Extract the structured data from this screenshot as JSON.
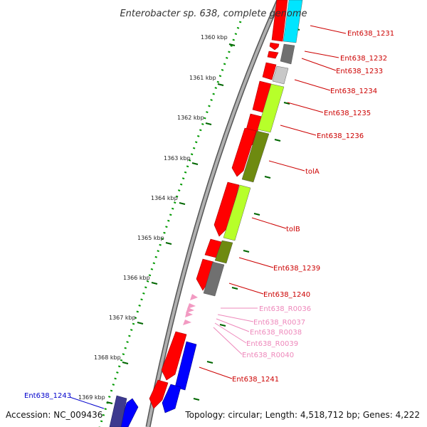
{
  "map": {
    "title": "Enterobacter sp. 638, complete genome",
    "accession": "Accession: NC_009436",
    "summary": "Topology: circular; Length: 4,518,712 bp; Genes: 4,222"
  },
  "ticks": [
    {
      "label": "1360 kbp"
    },
    {
      "label": "1361 kbp"
    },
    {
      "label": "1362 kbp"
    },
    {
      "label": "1363 kbp"
    },
    {
      "label": "1364 kbp"
    },
    {
      "label": "1365 kbp"
    },
    {
      "label": "1366 kbp"
    },
    {
      "label": "1367 kbp"
    },
    {
      "label": "1368 kbp"
    },
    {
      "label": "1369 kbp"
    }
  ],
  "genes": [
    {
      "label": "Ent638_1231",
      "color": "#cc0000"
    },
    {
      "label": "Ent638_1232",
      "color": "#cc0000"
    },
    {
      "label": "Ent638_1233",
      "color": "#cc0000"
    },
    {
      "label": "Ent638_1234",
      "color": "#cc0000"
    },
    {
      "label": "Ent638_1235",
      "color": "#cc0000"
    },
    {
      "label": "Ent638_1236",
      "color": "#cc0000"
    },
    {
      "label": "tolA",
      "color": "#cc0000"
    },
    {
      "label": "tolB",
      "color": "#cc0000"
    },
    {
      "label": "Ent638_1239",
      "color": "#cc0000"
    },
    {
      "label": "Ent638_1240",
      "color": "#cc0000"
    },
    {
      "label": "Ent638_R0036",
      "color": "#ee88bb"
    },
    {
      "label": "Ent638_R0037",
      "color": "#ee88bb"
    },
    {
      "label": "Ent638_R0038",
      "color": "#ee88bb"
    },
    {
      "label": "Ent638_R0039",
      "color": "#ee88bb"
    },
    {
      "label": "Ent638_R0040",
      "color": "#ee88bb"
    },
    {
      "label": "Ent638_1241",
      "color": "#cc0000"
    },
    {
      "label": "Ent638_1243",
      "color": "#0000cc"
    }
  ],
  "colors": {
    "cds_forward": "#ff0000",
    "cds_reverse": "#0000ff",
    "trna": "#f29ac2",
    "cog_cyan": "#00e5ff",
    "cog_gray": "#707070",
    "cog_lightgray": "#c8c8c8",
    "cog_lime": "#b7ff2a",
    "cog_olive": "#6e8a10",
    "cog_navy": "#3d3a8f",
    "backbone": "#9a9a9a",
    "tick_mark": "#006600"
  }
}
